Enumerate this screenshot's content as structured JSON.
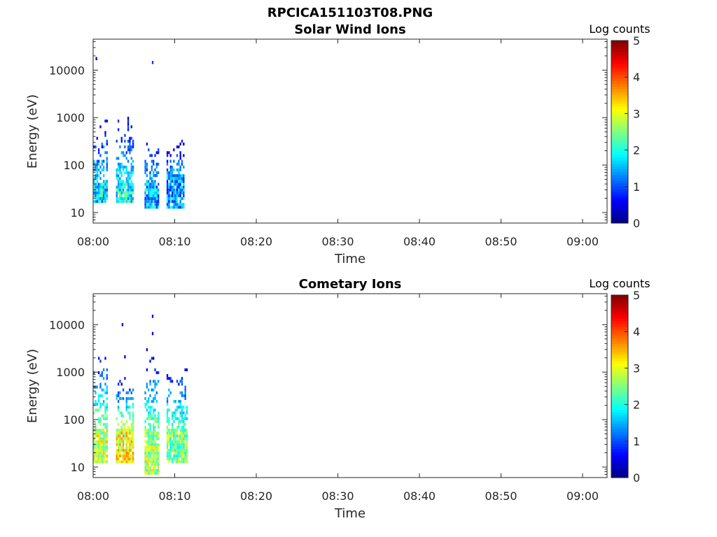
{
  "figure_title": "RPCICA151103T08.PNG",
  "chart_data": [
    {
      "type": "heatmap",
      "title": "Solar Wind Ions",
      "xlabel": "Time",
      "ylabel": "Energy (eV)",
      "x_ticks": [
        "08:00",
        "08:10",
        "08:20",
        "08:30",
        "08:40",
        "08:50",
        "09:00"
      ],
      "y_ticks": [
        "10",
        "100",
        "1000",
        "10000"
      ],
      "y_scale": "log",
      "ylim": [
        6,
        45000
      ],
      "xlim": [
        "08:00",
        "09:03"
      ],
      "colorbar": {
        "label": "Log counts",
        "ticks": [
          "0",
          "1",
          "2",
          "3",
          "4",
          "5"
        ],
        "range": [
          0,
          5
        ],
        "colormap": "jet"
      },
      "clusters": [
        {
          "t": [
            0.0,
            1.7
          ],
          "core": [
            16,
            45
          ],
          "level": 1.6,
          "sparse_max": 1000
        },
        {
          "t": [
            2.8,
            5.0
          ],
          "core": [
            16,
            45
          ],
          "level": 1.8,
          "sparse_max": 1100
        },
        {
          "t": [
            6.3,
            8.0
          ],
          "core": [
            12,
            45
          ],
          "level": 1.4,
          "sparse_max": 360
        },
        {
          "t": [
            9.0,
            11.0
          ],
          "core": [
            12,
            60
          ],
          "level": 1.3,
          "sparse_max": 330
        }
      ],
      "outliers": [
        {
          "t": 0.3,
          "e": 17500,
          "v": 0.5
        },
        {
          "t": 7.2,
          "e": 14500,
          "v": 0.9
        }
      ]
    },
    {
      "type": "heatmap",
      "title": "Cometary Ions",
      "xlabel": "Time",
      "ylabel": "Energy (eV)",
      "x_ticks": [
        "08:00",
        "08:10",
        "08:20",
        "08:30",
        "08:40",
        "08:50",
        "09:00"
      ],
      "y_ticks": [
        "10",
        "100",
        "1000",
        "10000"
      ],
      "y_scale": "log",
      "ylim": [
        6,
        45000
      ],
      "xlim": [
        "08:00",
        "09:03"
      ],
      "colorbar": {
        "label": "Log counts",
        "ticks": [
          "0",
          "1",
          "2",
          "3",
          "4",
          "5"
        ],
        "range": [
          0,
          5
        ],
        "colormap": "jet"
      },
      "clusters": [
        {
          "t": [
            0.0,
            1.7
          ],
          "core": [
            12,
            60
          ],
          "level": 2.8,
          "sparse_max": 2500
        },
        {
          "t": [
            2.8,
            5.0
          ],
          "core": [
            12,
            60
          ],
          "level": 3.0,
          "sparse_max": 800
        },
        {
          "t": [
            6.3,
            8.0
          ],
          "core": [
            7,
            60
          ],
          "level": 2.6,
          "sparse_max": 3000
        },
        {
          "t": [
            9.0,
            11.5
          ],
          "core": [
            12,
            60
          ],
          "level": 2.4,
          "sparse_max": 1600
        }
      ],
      "outliers": [
        {
          "t": 3.5,
          "e": 10000,
          "v": 0.6
        },
        {
          "t": 7.2,
          "e": 15000,
          "v": 0.6
        },
        {
          "t": 7.2,
          "e": 6500,
          "v": 0.6
        },
        {
          "t": 3.8,
          "e": 2100,
          "v": 0.6
        }
      ]
    }
  ]
}
